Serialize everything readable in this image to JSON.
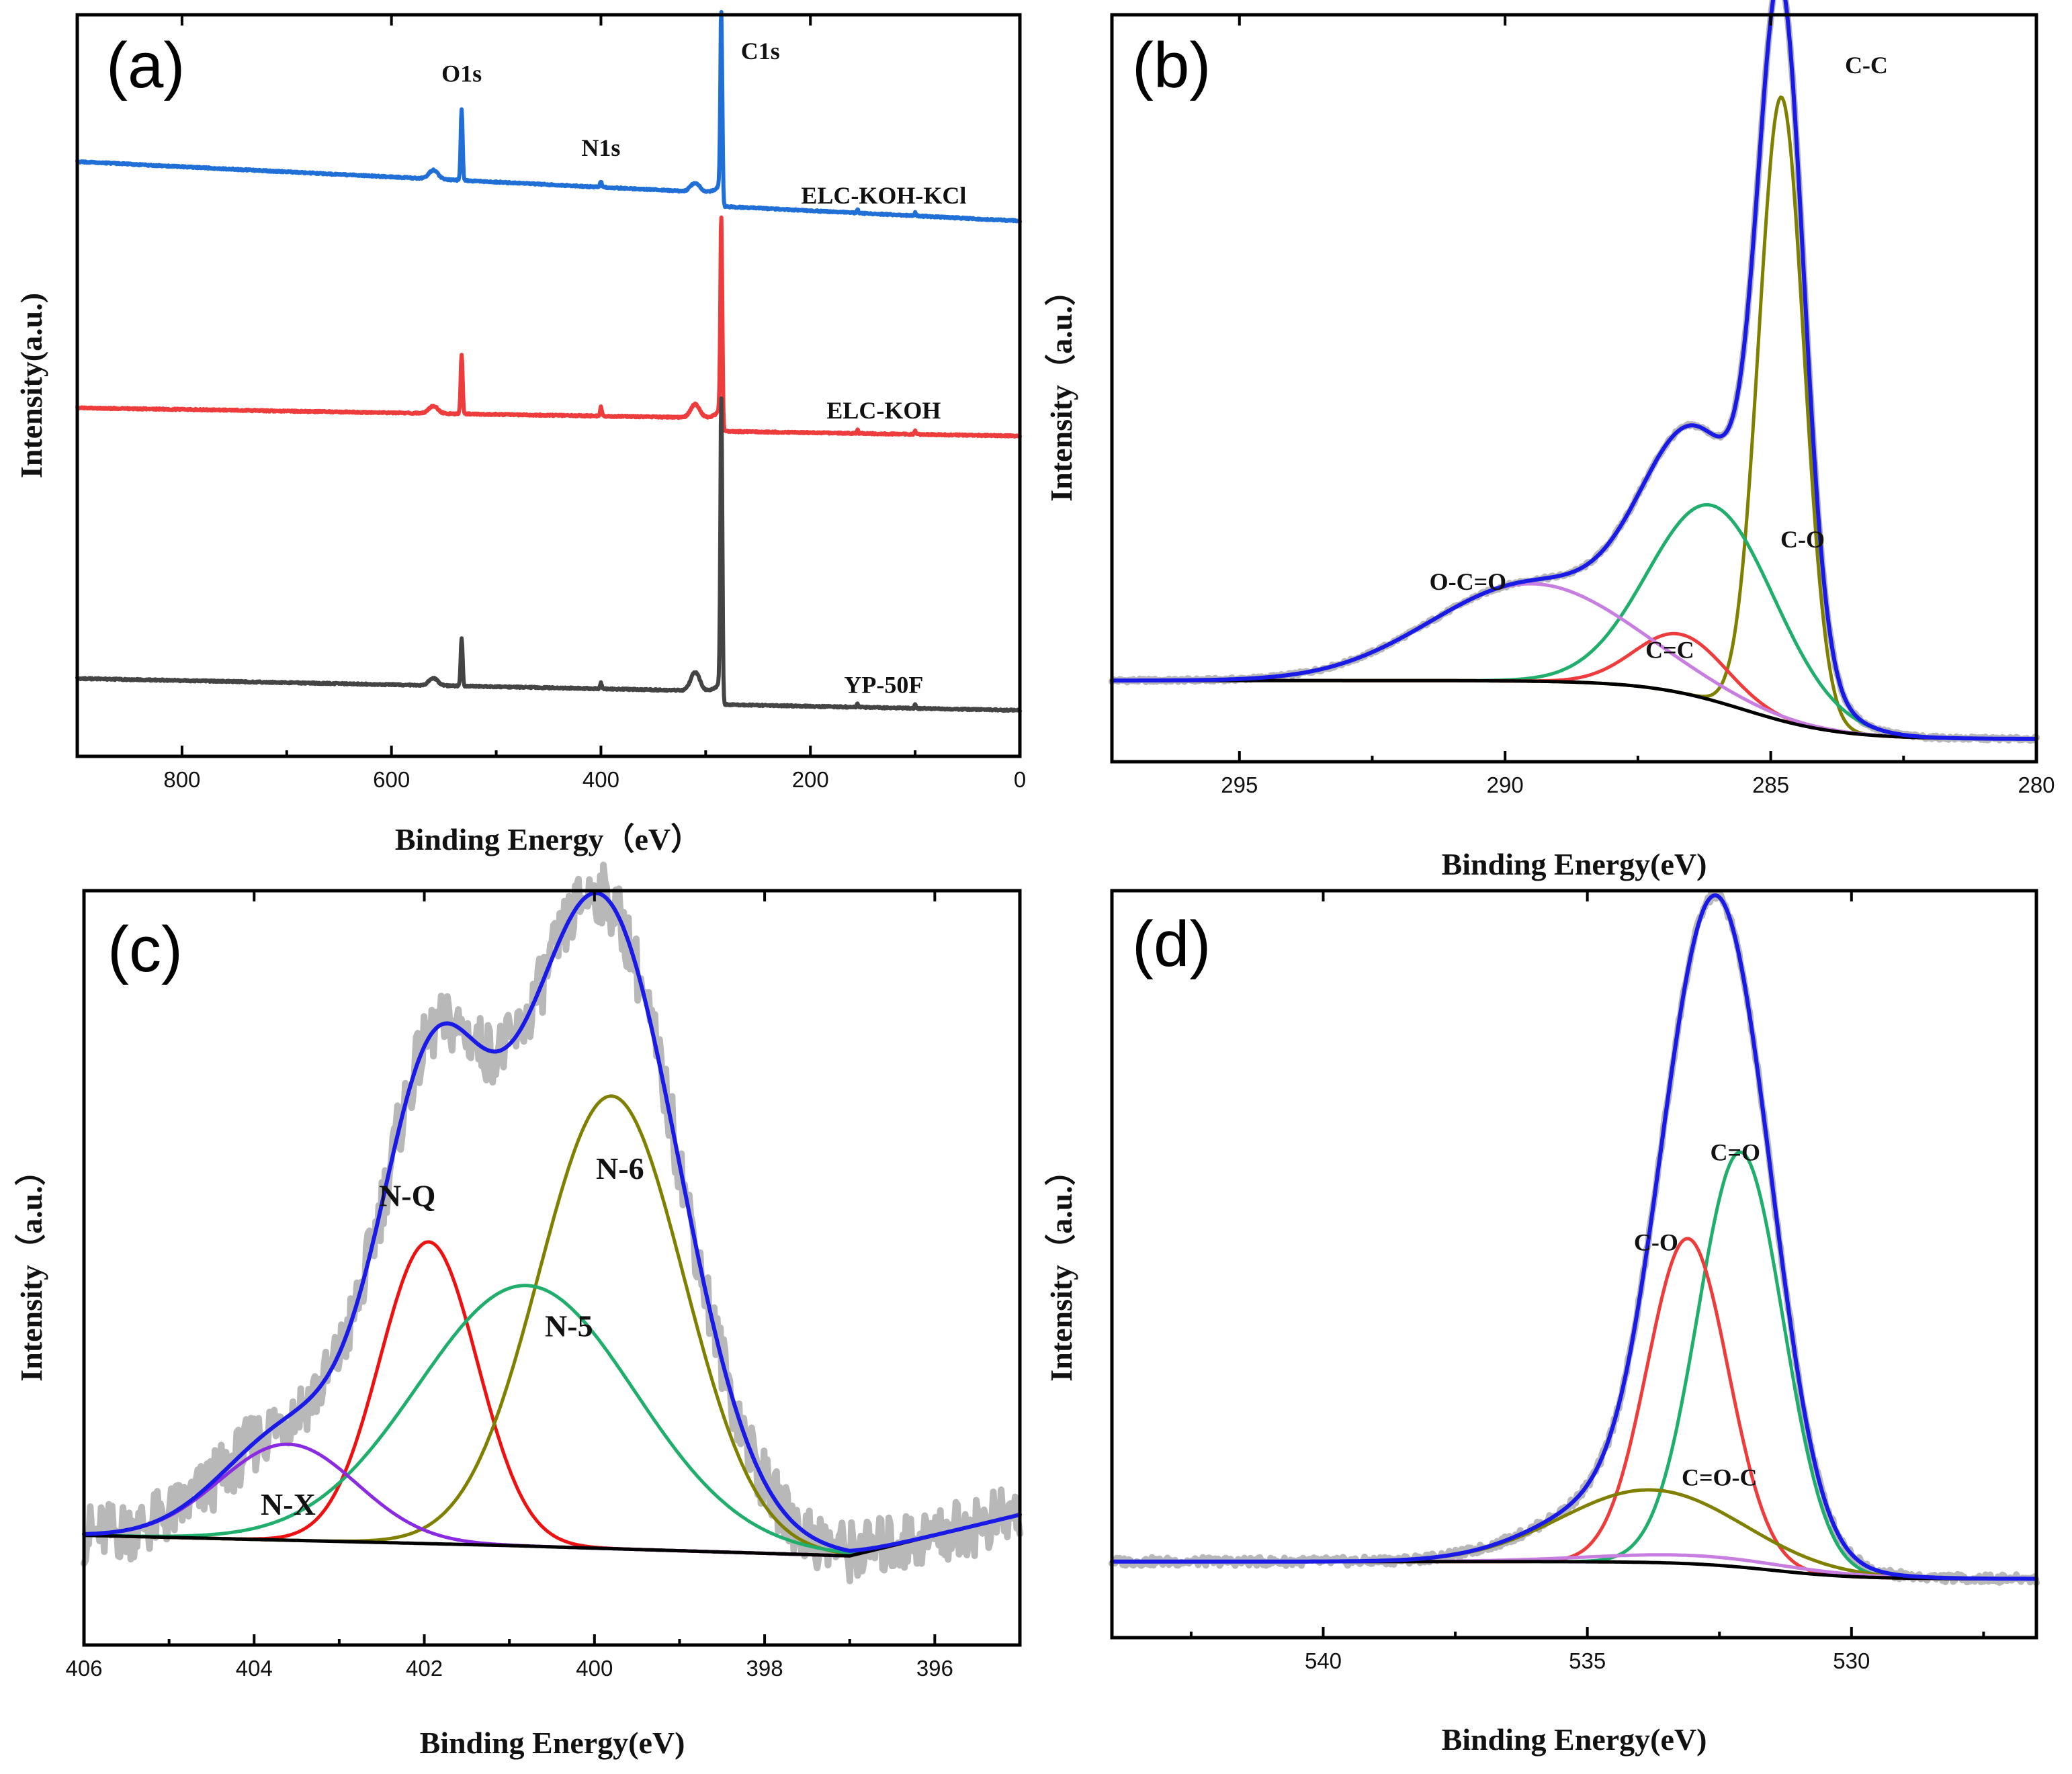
{
  "chart_data": [
    {
      "id": "a",
      "type": "line",
      "panel_label": "(a)",
      "xlabel": "Binding Energy（eV）",
      "ylabel": "Intensity(a.u.)",
      "xlim": [
        900,
        0
      ],
      "ylim": [
        0,
        10
      ],
      "xticks": [
        800,
        600,
        400,
        200,
        0
      ],
      "xtick_labels": [
        "800",
        "600",
        "400",
        "200",
        "0"
      ],
      "peak_labels": [
        {
          "text": "O1s",
          "x": 533,
          "y": 9.1
        },
        {
          "text": "N1s",
          "x": 400,
          "y": 8.1
        },
        {
          "text": "C1s",
          "x": 285,
          "y": 9.4
        }
      ],
      "series": [
        {
          "name": "ELC-KOH-KCl",
          "color": "#1f6fd6",
          "baseline": 7.4,
          "slope": 0.62,
          "peaks": [
            {
              "x": 533,
              "h": 0.95,
              "w": 2.2
            },
            {
              "x": 400,
              "h": 0.08,
              "w": 2
            },
            {
              "x": 285,
              "h": 2.45,
              "w": 2.2
            }
          ],
          "bumps": [
            {
              "x": 560,
              "h": 0.12,
              "w": 10
            },
            {
              "x": 310,
              "h": 0.12,
              "w": 10
            }
          ]
        },
        {
          "name": "ELC-KOH",
          "color": "#ee3b3b",
          "baseline": 4.5,
          "slope": 0.2,
          "peaks": [
            {
              "x": 533,
              "h": 0.8,
              "w": 2.2
            },
            {
              "x": 400,
              "h": 0.12,
              "w": 2
            },
            {
              "x": 285,
              "h": 2.7,
              "w": 2.2
            }
          ],
          "bumps": [
            {
              "x": 560,
              "h": 0.1,
              "w": 10
            },
            {
              "x": 310,
              "h": 0.18,
              "w": 10
            }
          ]
        },
        {
          "name": "YP-50F",
          "color": "#444444",
          "baseline": 0.8,
          "slope": 0.25,
          "peaks": [
            {
              "x": 533,
              "h": 0.65,
              "w": 2.2
            },
            {
              "x": 400,
              "h": 0.08,
              "w": 2
            },
            {
              "x": 285,
              "h": 3.95,
              "w": 2.2
            }
          ],
          "bumps": [
            {
              "x": 560,
              "h": 0.1,
              "w": 10
            },
            {
              "x": 310,
              "h": 0.25,
              "w": 10
            }
          ]
        }
      ]
    },
    {
      "id": "b",
      "type": "line",
      "panel_label": "(b)",
      "xlabel": "Binding Energy(eV)",
      "ylabel": "Intensity（a.u.）",
      "xlim": [
        297.4,
        280
      ],
      "ylim": [
        0,
        11.5
      ],
      "xticks": [
        295,
        290,
        285,
        280
      ],
      "xtick_labels": [
        "295",
        "290",
        "285",
        "280"
      ],
      "component_labels": [
        {
          "text": "C-C",
          "x": 283.2,
          "y": 10.6
        },
        {
          "text": "C-O",
          "x": 284.4,
          "y": 3.3
        },
        {
          "text": "C=C",
          "x": 286.9,
          "y": 1.6
        },
        {
          "text": "O-C=O",
          "x": 290.7,
          "y": 2.65
        }
      ],
      "components": [
        {
          "name": "C-C",
          "color": "#808000",
          "center": 284.8,
          "fwhm": 1.0,
          "height": 9.6
        },
        {
          "name": "C-O",
          "color": "#1fae6b",
          "center": 286.1,
          "fwhm": 2.8,
          "height": 3.0
        },
        {
          "name": "C=C",
          "color": "#ee3b3b",
          "center": 286.7,
          "fwhm": 2.0,
          "height": 0.9
        },
        {
          "name": "O-C=O",
          "color": "#c77ee0",
          "center": 289.5,
          "fwhm": 4.5,
          "height": 1.5
        }
      ],
      "envelope": {
        "name": "Fitted sum",
        "color": "#1a1ae6"
      },
      "raw": {
        "name": "Raw data",
        "color": "#b8b8b8"
      }
    },
    {
      "id": "c",
      "type": "line",
      "panel_label": "(c)",
      "xlabel": "Binding Energy(eV)",
      "ylabel": "Intensity（a.u.）",
      "xlim": [
        406,
        395
      ],
      "ylim": [
        -1.6,
        9.4
      ],
      "xticks": [
        406,
        404,
        402,
        400,
        398,
        396
      ],
      "xtick_labels": [
        "406",
        "404",
        "402",
        "400",
        "398",
        "396"
      ],
      "component_labels": [
        {
          "text": "N-Q",
          "x": 402.2,
          "y": 4.8
        },
        {
          "text": "N-6",
          "x": 399.7,
          "y": 5.2
        },
        {
          "text": "N-5",
          "x": 400.3,
          "y": 2.9
        },
        {
          "text": "N-X",
          "x": 403.6,
          "y": 0.3
        }
      ],
      "components": [
        {
          "name": "N-Q",
          "color": "#ee1111",
          "center": 401.95,
          "fwhm": 1.35,
          "height": 4.4
        },
        {
          "name": "N-6",
          "color": "#808000",
          "center": 399.8,
          "fwhm": 2.0,
          "height": 6.6
        },
        {
          "name": "N-5",
          "color": "#1fae6b",
          "center": 400.8,
          "fwhm": 3.0,
          "height": 3.8
        },
        {
          "name": "N-X",
          "color": "#8a2be2",
          "center": 403.6,
          "fwhm": 1.9,
          "height": 1.4
        }
      ],
      "background_points": [
        [
          406,
          0
        ],
        [
          401,
          -0.15
        ],
        [
          397,
          -0.3
        ],
        [
          395,
          0.3
        ]
      ],
      "envelope": {
        "name": "Fitted sum",
        "color": "#1a1ae6"
      },
      "raw": {
        "name": "Raw data",
        "color": "#b8b8b8"
      }
    },
    {
      "id": "d",
      "type": "line",
      "panel_label": "(d)",
      "xlabel": "Binding Energy(eV)",
      "ylabel": "Intensity（a.u.）",
      "xlim": [
        544,
        526.5
      ],
      "ylim": [
        -0.8,
        10
      ],
      "xticks": [
        540,
        535,
        530
      ],
      "xtick_labels": [
        "540",
        "535",
        "530"
      ],
      "component_labels": [
        {
          "text": "C=O",
          "x": 532.2,
          "y": 6.1
        },
        {
          "text": "C-O",
          "x": 533.7,
          "y": 4.8
        },
        {
          "text": "C=O-C",
          "x": 532.5,
          "y": 1.4
        }
      ],
      "components": [
        {
          "name": "C=O",
          "color": "#1fae6b",
          "center": 532.1,
          "fwhm": 1.9,
          "height": 6.0
        },
        {
          "name": "C-O",
          "color": "#ee3b3b",
          "center": 533.1,
          "fwhm": 1.8,
          "height": 4.7
        },
        {
          "name": "C=O-C",
          "color": "#808000",
          "center": 533.8,
          "fwhm": 4.0,
          "height": 1.05
        },
        {
          "name": "Shake-up",
          "color": "#c77ee0",
          "center": 533.0,
          "fwhm": 4.5,
          "height": 0.12
        }
      ],
      "envelope": {
        "name": "Fitted sum",
        "color": "#1a1ae6"
      },
      "raw": {
        "name": "Raw data",
        "color": "#b8b8b8"
      }
    }
  ]
}
